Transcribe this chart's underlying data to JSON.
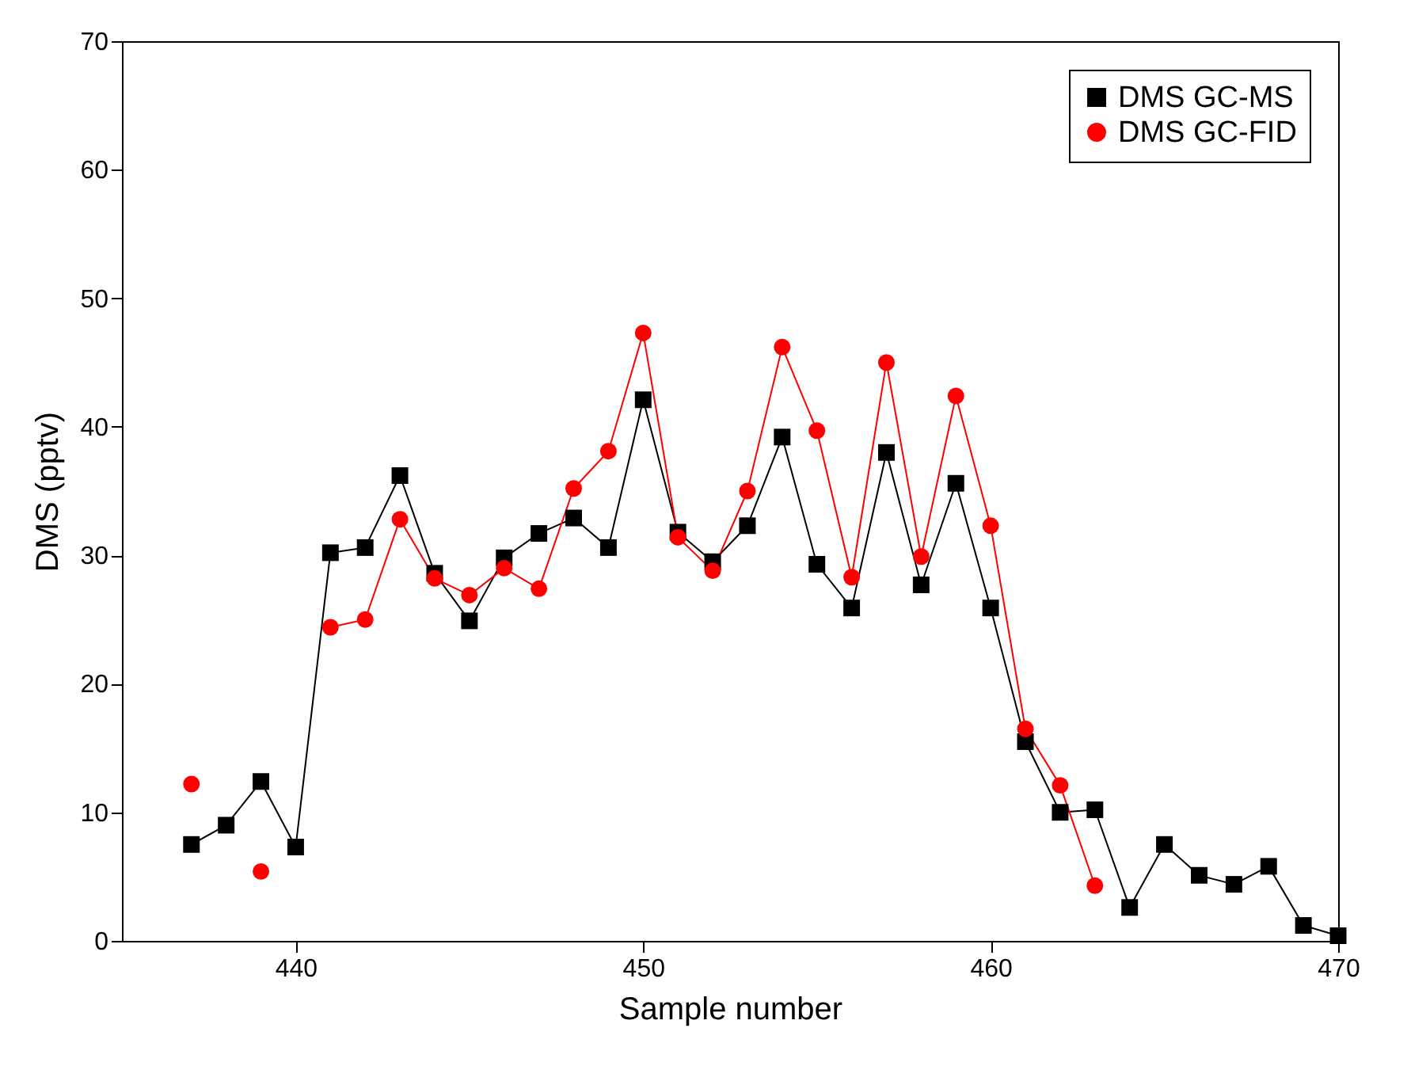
{
  "chart_data": {
    "type": "line",
    "xlabel": "Sample number",
    "ylabel": "DMS (pptv)",
    "x": [
      437,
      438,
      439,
      440,
      441,
      442,
      443,
      444,
      445,
      446,
      447,
      448,
      449,
      450,
      451,
      452,
      453,
      454,
      455,
      456,
      457,
      458,
      459,
      460,
      461,
      462,
      463,
      464,
      465,
      466,
      467,
      468,
      469,
      470
    ],
    "series": [
      {
        "name": "DMS GC-MS",
        "color": "#000000",
        "marker": "square",
        "values": [
          7.5,
          9.0,
          12.4,
          7.3,
          30.2,
          30.6,
          36.2,
          28.6,
          24.9,
          29.8,
          31.7,
          32.9,
          30.6,
          42.1,
          31.8,
          29.5,
          32.3,
          39.2,
          29.3,
          25.9,
          38.0,
          27.7,
          35.6,
          25.9,
          15.5,
          10.0,
          10.2,
          2.6,
          7.5,
          5.1,
          4.4,
          5.8,
          1.2,
          0.4
        ]
      },
      {
        "name": "DMS GC-FID",
        "color": "#ff0000",
        "marker": "circle",
        "values": [
          12.2,
          null,
          5.4,
          null,
          24.4,
          25.0,
          32.8,
          28.2,
          26.9,
          29.0,
          27.4,
          35.2,
          38.1,
          47.3,
          31.4,
          28.8,
          35.0,
          46.2,
          39.7,
          28.3,
          45.0,
          29.9,
          42.4,
          32.3,
          16.5,
          12.1,
          4.3,
          null,
          null,
          null,
          null,
          null,
          null,
          null
        ]
      }
    ],
    "xlim": [
      435,
      470
    ],
    "xticks": [
      440,
      450,
      460,
      470
    ],
    "ylim": [
      0,
      70
    ],
    "yticks": [
      0,
      10,
      20,
      30,
      40,
      50,
      60,
      70
    ],
    "grid": false,
    "legend": "top right",
    "line_style": "solid"
  }
}
